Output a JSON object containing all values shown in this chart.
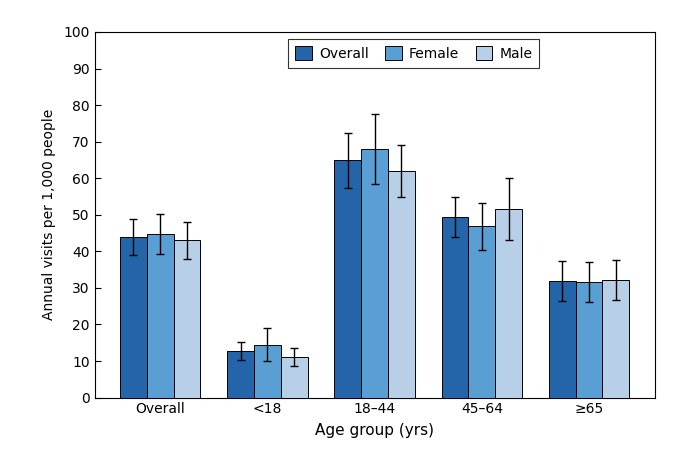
{
  "categories": [
    "Overall",
    "<18",
    "18–44",
    "45–64",
    "≥65"
  ],
  "overall": [
    43.9,
    12.8,
    64.9,
    49.4,
    31.8
  ],
  "female": [
    44.8,
    14.5,
    68.0,
    46.8,
    31.7
  ],
  "male": [
    43.0,
    11.2,
    62.0,
    51.6,
    32.2
  ],
  "overall_err": [
    5.0,
    2.5,
    7.5,
    5.5,
    5.5
  ],
  "female_err": [
    5.5,
    4.5,
    9.5,
    6.5,
    5.5
  ],
  "male_err": [
    5.0,
    2.5,
    7.0,
    8.5,
    5.5
  ],
  "bar_colors": [
    "#2464a8",
    "#5a9fd4",
    "#b8cfe8"
  ],
  "legend_labels": [
    "Overall",
    "Female",
    "Male"
  ],
  "xlabel": "Age group (yrs)",
  "ylabel": "Annual visits per 1,000 people",
  "ylim": [
    0,
    100
  ],
  "yticks": [
    0,
    10,
    20,
    30,
    40,
    50,
    60,
    70,
    80,
    90,
    100
  ],
  "bar_width": 0.25,
  "figsize": [
    6.75,
    4.57
  ],
  "dpi": 100
}
